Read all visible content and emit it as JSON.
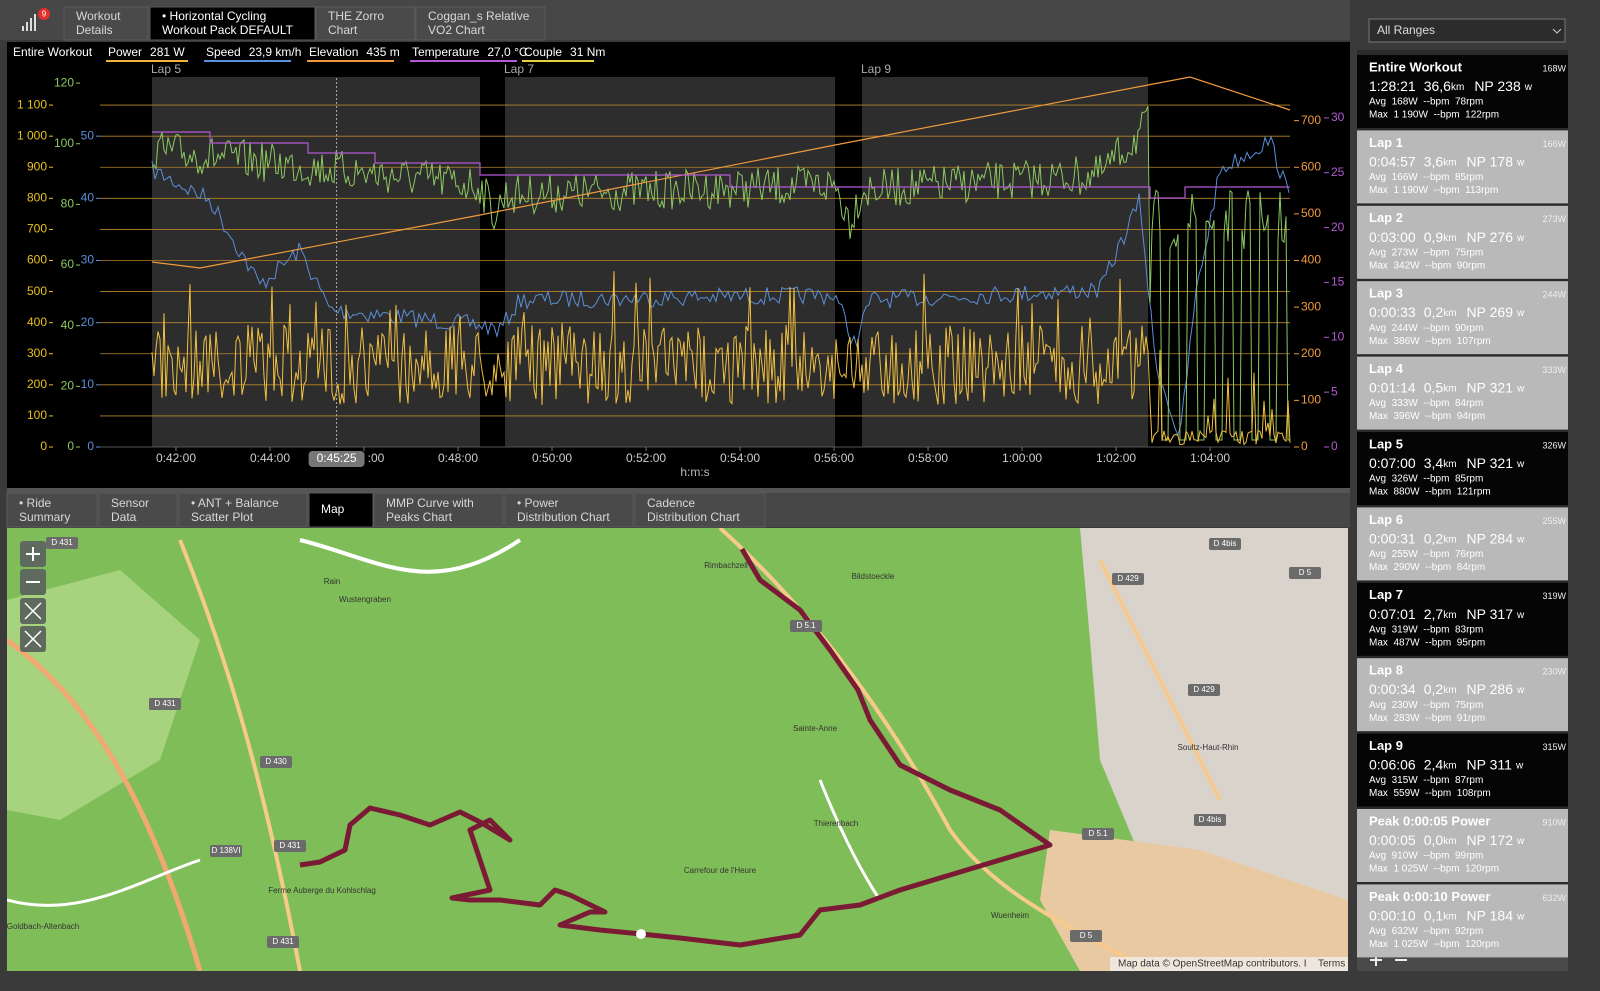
{
  "notification_badge": "9",
  "top_tabs": [
    [
      "Workout",
      "Details"
    ],
    [
      "• Horizontal Cycling",
      "Workout Pack DEFAULT"
    ],
    [
      "THE Zorro",
      "Chart"
    ],
    [
      "Coggan_s Relative",
      "VO2 Chart"
    ]
  ],
  "range_select": "All Ranges",
  "chart": {
    "range_name": "Entire Workout",
    "legend": [
      {
        "name": "Power",
        "value": "281 W",
        "color": "#f0b43c"
      },
      {
        "name": "Speed",
        "value": "23,9 km/h",
        "color": "#5b8fd9"
      },
      {
        "name": "Elevation",
        "value": "435 m",
        "color": "#f09a3c"
      },
      {
        "name": "Temperature",
        "value": "27,0 °C",
        "color": "#b45ad2"
      },
      {
        "name": "Couple",
        "value": "31 Nm",
        "color": "#e6d23c"
      }
    ],
    "lap_labels": [
      "Lap 5",
      "Lap 7",
      "Lap 9"
    ],
    "axes": [
      {
        "name": "power",
        "side": "left",
        "color": "#e8c020",
        "lim": [
          0,
          1200
        ],
        "ticks": [
          0,
          100,
          200,
          300,
          400,
          500,
          600,
          700,
          800,
          900,
          {
            "value": 1000,
            "label": "1 000"
          },
          {
            "value": 1100,
            "label": "1 100"
          }
        ]
      },
      {
        "name": "cadence",
        "side": "left",
        "color": "#8cc860",
        "lim": [
          0,
          123
        ],
        "ticks": [
          0,
          20,
          40,
          60,
          80,
          100,
          120
        ]
      },
      {
        "name": "speed",
        "side": "left",
        "color": "#5b8fd9",
        "lim": [
          0,
          60
        ],
        "ticks": [
          0,
          10,
          20,
          30,
          40,
          50
        ]
      },
      {
        "name": "elevation",
        "side": "right",
        "color": "#f09a3c",
        "lim": [
          0,
          800
        ],
        "ticks": [
          0,
          100,
          200,
          300,
          400,
          500,
          600,
          700
        ]
      },
      {
        "name": "temperature",
        "side": "right",
        "color": "#b45ad2",
        "lim": [
          0,
          34
        ],
        "ticks": [
          0,
          5,
          10,
          15,
          20,
          25,
          30
        ]
      }
    ],
    "x_axis": {
      "label": "h:m:s",
      "lim": [
        2423,
        3942
      ],
      "ticks": [
        {
          "value": 2520,
          "label": "0:42:00"
        },
        {
          "value": 2640,
          "label": "0:44:00"
        },
        {
          "value": 2760,
          "label": ":00"
        },
        {
          "value": 2880,
          "label": "0:48:00"
        },
        {
          "value": 3000,
          "label": "0:50:00"
        },
        {
          "value": 3120,
          "label": "0:52:00"
        },
        {
          "value": 3240,
          "label": "0:54:00"
        },
        {
          "value": 3360,
          "label": "0:56:00"
        },
        {
          "value": 3480,
          "label": "0:58:00"
        },
        {
          "value": 3600,
          "label": "1:00:00"
        },
        {
          "value": 3720,
          "label": "1:02:00"
        },
        {
          "value": 3840,
          "label": "1:04:00"
        }
      ],
      "cursor": {
        "value": 2725,
        "label": "0:45:25"
      }
    }
  },
  "bottom_tabs": [
    [
      "• Ride",
      "Summary"
    ],
    [
      "Sensor",
      "Data"
    ],
    [
      "• ANT + Balance",
      "Scatter Plot"
    ],
    [
      "Map"
    ],
    [
      "MMP Curve with",
      "Peaks Chart"
    ],
    [
      "• Power",
      "Distribution Chart"
    ],
    [
      "Cadence",
      "Distribution Chart"
    ]
  ],
  "map": {
    "labels": [
      "D 431",
      "Rain",
      "Wustengraben",
      "Rimbachzell",
      "Bildstoeckle",
      "D 431",
      "D 430",
      "D 5.1",
      "Sainte-Anne",
      "Thierenbach",
      "Carrefour de l'Heure",
      "Ferme Auberge du Kohlschlag",
      "D 138VI",
      "D 431",
      "Goldbach-Altenbach",
      "D 431",
      "D 429",
      "D 429",
      "Soultz-Haut-Rhin",
      "D 4bis",
      "D 5.1",
      "Wuenheim",
      "D 5",
      "D 4bis",
      "D 5"
    ],
    "attribution": "Map data © OpenStreetMap contributors. I",
    "terms": "Terms"
  },
  "laps": [
    {
      "name": "Entire Workout",
      "corner": "168W",
      "time": "1:28:21",
      "distance": "36,6",
      "distance_unit": "km",
      "np": "NP 238",
      "np_unit": "w",
      "avg": "Avg  168W  --bpm  78rpm",
      "max": "Max  1 190W  --bpm  122rpm",
      "highlighted": true
    },
    {
      "name": "Lap 1",
      "corner": "166W",
      "time": "0:04:57",
      "distance": "3,6",
      "distance_unit": "km",
      "np": "NP 178",
      "np_unit": "w",
      "avg": "Avg  166W  --bpm  85rpm",
      "max": "Max  1 190W  --bpm  113rpm",
      "highlighted": false
    },
    {
      "name": "Lap 2",
      "corner": "273W",
      "time": "0:03:00",
      "distance": "0,9",
      "distance_unit": "km",
      "np": "NP 276",
      "np_unit": "w",
      "avg": "Avg  273W  --bpm  75rpm",
      "max": "Max  342W  --bpm  90rpm",
      "highlighted": false
    },
    {
      "name": "Lap 3",
      "corner": "244W",
      "time": "0:00:33",
      "distance": "0,2",
      "distance_unit": "km",
      "np": "NP 269",
      "np_unit": "w",
      "avg": "Avg  244W  --bpm  90rpm",
      "max": "Max  386W  --bpm  107rpm",
      "highlighted": false
    },
    {
      "name": "Lap 4",
      "corner": "333W",
      "time": "0:01:14",
      "distance": "0,5",
      "distance_unit": "km",
      "np": "NP 321",
      "np_unit": "w",
      "avg": "Avg  333W  --bpm  84rpm",
      "max": "Max  396W  --bpm  94rpm",
      "highlighted": false
    },
    {
      "name": "Lap 5",
      "corner": "326W",
      "time": "0:07:00",
      "distance": "3,4",
      "distance_unit": "km",
      "np": "NP 321",
      "np_unit": "w",
      "avg": "Avg  326W  --bpm  85rpm",
      "max": "Max  880W  --bpm  121rpm",
      "highlighted": true
    },
    {
      "name": "Lap 6",
      "corner": "255W",
      "time": "0:00:31",
      "distance": "0,2",
      "distance_unit": "km",
      "np": "NP 284",
      "np_unit": "w",
      "avg": "Avg  255W  --bpm  76rpm",
      "max": "Max  290W  --bpm  84rpm",
      "highlighted": false
    },
    {
      "name": "Lap 7",
      "corner": "319W",
      "time": "0:07:01",
      "distance": "2,7",
      "distance_unit": "km",
      "np": "NP 317",
      "np_unit": "w",
      "avg": "Avg  319W  --bpm  83rpm",
      "max": "Max  487W  --bpm  95rpm",
      "highlighted": true
    },
    {
      "name": "Lap 8",
      "corner": "230W",
      "time": "0:00:34",
      "distance": "0,2",
      "distance_unit": "km",
      "np": "NP 286",
      "np_unit": "w",
      "avg": "Avg  230W  --bpm  75rpm",
      "max": "Max  283W  --bpm  91rpm",
      "highlighted": false
    },
    {
      "name": "Lap 9",
      "corner": "315W",
      "time": "0:06:06",
      "distance": "2,4",
      "distance_unit": "km",
      "np": "NP 311",
      "np_unit": "w",
      "avg": "Avg  315W  --bpm  87rpm",
      "max": "Max  559W  --bpm  108rpm",
      "highlighted": true
    },
    {
      "name": "Peak 0:00:05 Power",
      "corner": "910W",
      "time": "0:00:05",
      "distance": "0,0",
      "distance_unit": "km",
      "np": "NP 172",
      "np_unit": "w",
      "avg": "Avg  910W  --bpm  99rpm",
      "max": "Max  1 025W  --bpm  120rpm",
      "highlighted": false
    },
    {
      "name": "Peak 0:00:10 Power",
      "corner": "632W",
      "time": "0:00:10",
      "distance": "0,1",
      "distance_unit": "km",
      "np": "NP 184",
      "np_unit": "w",
      "avg": "Avg  632W  --bpm  92rpm",
      "max": "Max  1 025W  --bpm  120rpm",
      "highlighted": false
    }
  ]
}
